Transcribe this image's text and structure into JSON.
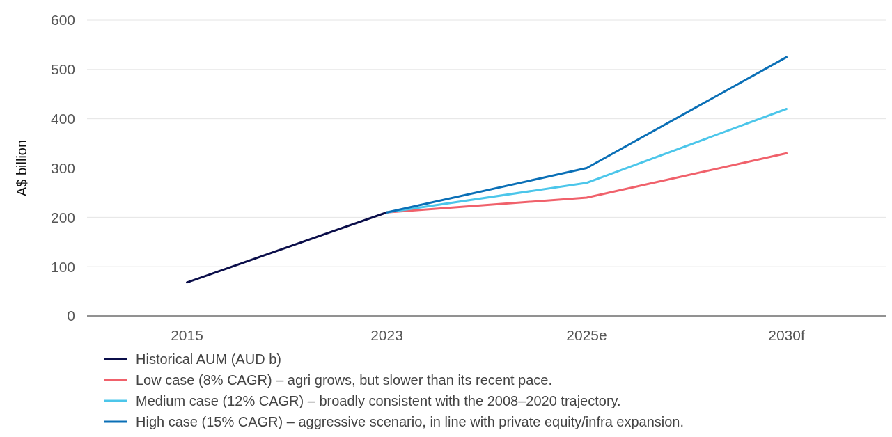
{
  "chart_data": {
    "type": "line",
    "ylabel": "A$ billion",
    "categories": [
      "2015",
      "2023",
      "2025e",
      "2030f"
    ],
    "series": [
      {
        "name": "Historical AUM (AUD b)",
        "color": "#0b0e4a",
        "values": [
          68,
          210,
          null,
          null
        ]
      },
      {
        "name": "Low case (8% CAGR) – agri grows, but slower than its recent pace.",
        "color": "#f0616b",
        "values": [
          null,
          210,
          240,
          330
        ]
      },
      {
        "name": "Medium case (12% CAGR) – broadly consistent with the 2008–2020 trajectory.",
        "color": "#4cc6ea",
        "values": [
          null,
          210,
          270,
          420
        ]
      },
      {
        "name": "High case (15% CAGR) – aggressive scenario, in line with private equity/infra expansion.",
        "color": "#0a6fb6",
        "values": [
          null,
          210,
          300,
          525
        ]
      }
    ],
    "ylim": [
      0,
      600
    ],
    "yticks": [
      0,
      100,
      200,
      300,
      400,
      500,
      600
    ],
    "grid": "y",
    "legend": "bottom",
    "marker": "none",
    "line_style": "solid"
  }
}
